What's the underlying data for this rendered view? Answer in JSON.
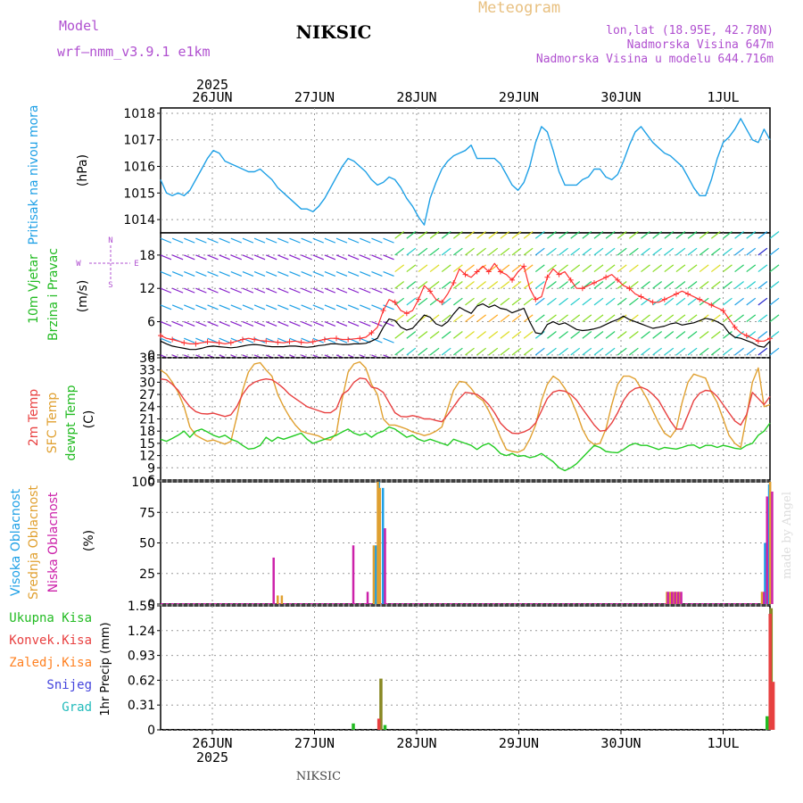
{
  "header": {
    "model_label": "Model",
    "model_name": "wrf–nmm_v3.9.1  e1km",
    "station": "NIKSIC",
    "product": "Meteogram",
    "coords": "lon,lat (18.95E, 42.78N)",
    "elevation": "Nadmorska Visina 647m",
    "model_elevation": "Nadmorska Visina u modelu 644.716m"
  },
  "footer": {
    "station": "NIKSIC",
    "credit": "made by Angel"
  },
  "colors": {
    "pressure": "#1ea0e6",
    "temp2m": "#e84040",
    "sfc": "#e0a030",
    "dewpt": "#22cc22",
    "wind_speed": "#000000",
    "gust": "#ff3030",
    "high_cloud": "#1ea0e6",
    "mid_cloud": "#e0a030",
    "low_cloud": "#cc22aa",
    "total_precip": "#22bb22",
    "conv_precip": "#e84040",
    "frozen_precip": "#ff8020",
    "snow": "#4444dd",
    "hail": "#22bbbb",
    "purple_label": "#b050d0"
  },
  "chart_data": [
    {
      "type": "line",
      "ylabel_left": "Pritisak na nivou mora",
      "units": "(hPa)",
      "x_labels": [
        "26JUN",
        "27JUN",
        "28JUN",
        "29JUN",
        "30JUN",
        "1JUL"
      ],
      "x_year": "2025",
      "y_ticks": [
        "1014",
        "1015",
        "1016",
        "1017",
        "1018"
      ],
      "ylim": [
        1013.5,
        1018.2
      ],
      "series": [
        {
          "values": [
            1015.5,
            1015.0,
            1014.9,
            1015.0,
            1014.9,
            1015.1,
            1015.5,
            1015.9,
            1016.3,
            1016.6,
            1016.5,
            1016.2,
            1016.1,
            1016.0,
            1015.9,
            1015.8,
            1015.8,
            1015.9,
            1015.7,
            1015.5,
            1015.2,
            1015.0,
            1014.8,
            1014.6,
            1014.4,
            1014.4,
            1014.3,
            1014.5,
            1014.8,
            1015.2,
            1015.6,
            1016.0,
            1016.3,
            1016.2,
            1016.0,
            1015.8,
            1015.5,
            1015.3,
            1015.4,
            1015.6,
            1015.5,
            1015.2,
            1014.8,
            1014.5,
            1014.1,
            1013.8,
            1014.8,
            1015.4,
            1015.9,
            1016.2,
            1016.4,
            1016.5,
            1016.6,
            1016.8,
            1016.3,
            1016.3,
            1016.3,
            1016.3,
            1016.1,
            1015.7,
            1015.3,
            1015.1,
            1015.4,
            1016.0,
            1016.9,
            1017.5,
            1017.3,
            1016.6,
            1015.8,
            1015.3,
            1015.3,
            1015.3,
            1015.5,
            1015.6,
            1015.9,
            1015.9,
            1015.6,
            1015.5,
            1015.7,
            1016.2,
            1016.8,
            1017.3,
            1017.5,
            1017.2,
            1016.9,
            1016.7,
            1016.5,
            1016.4,
            1016.2,
            1016.0,
            1015.6,
            1015.2,
            1014.9,
            1014.9,
            1015.5,
            1016.3,
            1016.9,
            1017.1,
            1017.4,
            1017.8,
            1017.4,
            1017.0,
            1016.9,
            1017.4,
            1017.0
          ]
        }
      ]
    },
    {
      "type": "line",
      "ylabel_left": [
        "10m Vjetar",
        "Brzina i Pravac"
      ],
      "units": "(m/s)",
      "compass": {
        "north": "N",
        "west": "W",
        "east": "E",
        "south": "S"
      },
      "y_ticks": [
        "0",
        "6",
        "12",
        "18"
      ],
      "ylim": [
        -0.5,
        22
      ],
      "series": [
        {
          "name": "speed",
          "values": [
            2.5,
            2.0,
            1.6,
            1.4,
            1.2,
            1.0,
            1.0,
            1.2,
            1.5,
            1.6,
            1.5,
            1.4,
            1.3,
            1.4,
            1.6,
            1.8,
            1.9,
            1.8,
            1.6,
            1.5,
            1.5,
            1.5,
            1.6,
            1.6,
            1.5,
            1.4,
            1.5,
            1.7,
            1.8,
            2.0,
            2.0,
            1.9,
            1.9,
            2.0,
            2.0,
            2.1,
            2.5,
            3.0,
            5.0,
            6.5,
            6.2,
            5.0,
            4.5,
            4.8,
            6.0,
            7.2,
            6.8,
            5.6,
            5.2,
            6.0,
            7.4,
            8.6,
            8.0,
            7.5,
            8.8,
            9.2,
            8.6,
            9.0,
            8.4,
            8.2,
            7.6,
            8.0,
            8.4,
            6.0,
            4.0,
            3.8,
            5.5,
            6.0,
            5.5,
            5.8,
            5.2,
            4.6,
            4.4,
            4.5,
            4.7,
            5.0,
            5.5,
            6.0,
            6.4,
            7.0,
            6.4,
            6.0,
            5.6,
            5.2,
            4.8,
            5.0,
            5.2,
            5.6,
            5.8,
            5.4,
            5.6,
            5.8,
            6.2,
            6.6,
            6.4,
            6.0,
            5.4,
            4.0,
            3.2,
            3.0,
            2.6,
            2.2,
            1.6,
            1.4,
            2.5
          ]
        },
        {
          "name": "gust",
          "values": [
            3.5,
            3.0,
            2.8,
            2.5,
            2.2,
            2.0,
            2.0,
            2.2,
            2.4,
            2.3,
            2.2,
            2.0,
            2.2,
            2.5,
            2.8,
            3.0,
            2.8,
            2.6,
            2.5,
            2.4,
            2.3,
            2.2,
            2.4,
            2.5,
            2.3,
            2.2,
            2.4,
            2.6,
            2.8,
            3.0,
            3.0,
            2.8,
            2.8,
            2.9,
            3.0,
            3.2,
            4.0,
            5.0,
            8.0,
            10.0,
            9.5,
            8.0,
            7.5,
            8.0,
            10.0,
            12.5,
            11.5,
            10.0,
            9.5,
            11.0,
            13.0,
            15.5,
            14.5,
            14.0,
            15.0,
            16.0,
            15.0,
            16.5,
            15.0,
            14.5,
            13.5,
            15.0,
            16.0,
            12.0,
            10.0,
            10.5,
            14.0,
            15.5,
            14.5,
            15.0,
            13.5,
            12.0,
            12.0,
            12.5,
            13.0,
            13.5,
            14.0,
            14.5,
            13.5,
            12.5,
            12.0,
            11.0,
            10.5,
            10.0,
            9.5,
            9.5,
            10.0,
            10.5,
            11.0,
            11.5,
            11.0,
            10.5,
            10.0,
            9.5,
            9.0,
            8.5,
            8.0,
            6.5,
            5.0,
            4.0,
            3.5,
            3.0,
            2.5,
            2.5,
            3.0
          ]
        }
      ]
    },
    {
      "type": "line",
      "ylabel_left": [
        "2m Temp",
        "SFC Temp",
        "dewpt Temp"
      ],
      "units": "(C)",
      "y_ticks": [
        "6",
        "9",
        "12",
        "15",
        "18",
        "21",
        "24",
        "27",
        "30",
        "33",
        "36"
      ],
      "ylim": [
        6,
        36
      ],
      "series": [
        {
          "name": "2m Temp",
          "values": [
            30.8,
            30.6,
            29.5,
            28.0,
            25.8,
            24.0,
            22.8,
            22.3,
            22.2,
            22.4,
            22.0,
            21.6,
            22.0,
            24.0,
            27.0,
            29.0,
            30.0,
            30.5,
            30.8,
            30.6,
            29.7,
            28.5,
            27.0,
            26.0,
            25.0,
            24.0,
            23.5,
            23.0,
            22.5,
            22.5,
            23.5,
            27.0,
            28.0,
            30.0,
            31.0,
            30.8,
            28.8,
            28.5,
            27.5,
            25.0,
            22.5,
            21.6,
            21.5,
            21.8,
            21.5,
            21.0,
            21.0,
            20.6,
            20.3,
            22.0,
            24.0,
            26.0,
            27.5,
            27.3,
            27.0,
            26.0,
            24.5,
            22.5,
            20.0,
            18.5,
            17.5,
            17.4,
            17.8,
            18.5,
            20.0,
            23.0,
            26.0,
            27.6,
            28.0,
            27.8,
            27.0,
            25.6,
            23.5,
            21.5,
            19.5,
            18.0,
            18.2,
            20.0,
            22.5,
            25.5,
            27.5,
            28.5,
            28.8,
            28.2,
            27.0,
            25.5,
            23.0,
            20.5,
            18.5,
            18.5,
            22.0,
            25.5,
            27.3,
            28.0,
            27.8,
            26.5,
            24.5,
            22.5,
            20.5,
            19.5,
            22.0,
            27.5,
            26.0,
            24.5,
            26.5
          ]
        },
        {
          "name": "SFC Temp",
          "values": [
            33.0,
            32.0,
            30.0,
            27.5,
            24.0,
            19.0,
            17.0,
            16.2,
            15.5,
            15.8,
            15.3,
            14.8,
            15.5,
            21.5,
            28.0,
            32.5,
            34.5,
            34.8,
            33.0,
            31.5,
            27.0,
            24.0,
            21.5,
            19.5,
            18.0,
            17.5,
            17.2,
            16.8,
            16.0,
            15.8,
            17.5,
            26.0,
            32.5,
            34.5,
            35.0,
            33.5,
            29.5,
            27.0,
            21.0,
            19.5,
            19.5,
            19.0,
            18.5,
            17.8,
            17.4,
            16.9,
            17.3,
            18.0,
            19.0,
            23.5,
            28.0,
            30.2,
            30.0,
            28.5,
            26.5,
            25.5,
            23.0,
            20.0,
            16.5,
            13.5,
            13.0,
            12.8,
            13.5,
            16.0,
            19.5,
            25.5,
            29.5,
            31.5,
            30.5,
            28.5,
            26.0,
            22.5,
            18.5,
            15.8,
            14.7,
            15.0,
            18.5,
            24.5,
            29.5,
            31.5,
            31.5,
            30.8,
            28.5,
            26.0,
            23.0,
            20.0,
            17.5,
            16.5,
            18.5,
            25.0,
            30.0,
            32.0,
            31.5,
            31.0,
            27.5,
            25.0,
            21.0,
            17.0,
            15.0,
            14.0,
            21.5,
            30.0,
            33.5,
            24.0,
            24.5
          ]
        },
        {
          "name": "dewpt Temp",
          "values": [
            16.0,
            15.5,
            16.2,
            17.0,
            18.0,
            16.5,
            18.0,
            18.5,
            17.8,
            17.0,
            16.5,
            17.0,
            16.0,
            15.5,
            14.5,
            13.6,
            13.8,
            14.5,
            16.5,
            15.5,
            16.5,
            16.0,
            16.5,
            17.0,
            17.5,
            16.0,
            15.0,
            15.5,
            16.0,
            16.5,
            17.0,
            17.8,
            18.5,
            17.5,
            17.0,
            17.5,
            16.5,
            17.5,
            18.0,
            19.0,
            18.5,
            17.5,
            16.5,
            17.0,
            16.0,
            15.5,
            16.0,
            15.5,
            15.0,
            14.5,
            16.0,
            15.5,
            15.0,
            14.5,
            13.5,
            14.5,
            15.0,
            14.0,
            12.5,
            12.0,
            12.5,
            11.8,
            12.0,
            11.5,
            11.8,
            12.5,
            11.5,
            10.5,
            9.0,
            8.3,
            9.0,
            10.0,
            11.5,
            13.0,
            14.5,
            14.0,
            13.0,
            12.8,
            12.7,
            13.5,
            14.5,
            15.0,
            14.5,
            14.5,
            14.0,
            13.5,
            14.0,
            13.8,
            13.6,
            14.0,
            14.5,
            14.6,
            13.8,
            14.5,
            14.5,
            14.0,
            14.5,
            14.2,
            13.8,
            13.6,
            14.5,
            15.0,
            17.0,
            18.0,
            20.0
          ]
        }
      ]
    },
    {
      "type": "bar",
      "ylabel_left": [
        "Visoka Oblacnost",
        "Srednja Oblacnost",
        "Niska Oblacnost"
      ],
      "units": "(%)",
      "y_ticks": [
        "0",
        "25",
        "50",
        "75",
        "100"
      ],
      "ylim": [
        0,
        100
      ],
      "series": [
        {
          "name": "Visoka Oblacnost",
          "bars": [
            {
              "day": 1.6,
              "v": 48
            },
            {
              "day": 1.63,
              "v": 100
            },
            {
              "day": 1.67,
              "v": 95
            },
            {
              "day": 5.41,
              "v": 50
            },
            {
              "day": 5.45,
              "v": 98
            }
          ]
        },
        {
          "name": "Srednja Oblacnost",
          "bars": [
            {
              "day": 0.64,
              "v": 7
            },
            {
              "day": 0.68,
              "v": 7
            },
            {
              "day": 1.58,
              "v": 48
            },
            {
              "day": 1.62,
              "v": 100
            },
            {
              "day": 1.64,
              "v": 95
            },
            {
              "day": 4.45,
              "v": 10
            },
            {
              "day": 4.48,
              "v": 10
            },
            {
              "day": 4.51,
              "v": 10
            },
            {
              "day": 4.54,
              "v": 10
            },
            {
              "day": 4.57,
              "v": 10
            },
            {
              "day": 5.38,
              "v": 10
            },
            {
              "day": 5.46,
              "v": 100
            }
          ]
        },
        {
          "name": "Niska Oblacnost",
          "bars": [
            {
              "day": 0.6,
              "v": 38
            },
            {
              "day": 1.38,
              "v": 48
            },
            {
              "day": 1.52,
              "v": 10
            },
            {
              "day": 1.69,
              "v": 62
            },
            {
              "day": 4.46,
              "v": 10
            },
            {
              "day": 4.5,
              "v": 10
            },
            {
              "day": 4.53,
              "v": 10
            },
            {
              "day": 4.56,
              "v": 10
            },
            {
              "day": 4.59,
              "v": 10
            },
            {
              "day": 5.4,
              "v": 10
            },
            {
              "day": 5.43,
              "v": 88
            },
            {
              "day": 5.48,
              "v": 92
            }
          ]
        }
      ]
    },
    {
      "type": "bar",
      "ylabel_left": [
        "Ukupna Kisa",
        "Konvek.Kisa",
        "Zaledj.Kisa",
        "Snijeg",
        "Grad"
      ],
      "units": "1hr Precip (mm)",
      "y_ticks": [
        "0",
        "0.31",
        "0.62",
        "0.93",
        "1.24",
        "1.55"
      ],
      "ylim": [
        0,
        1.55
      ],
      "series": [
        {
          "name": "Ukupna Kisa",
          "bars": [
            {
              "day": 1.38,
              "v": 0.08
            },
            {
              "day": 1.65,
              "v": 0.64
            },
            {
              "day": 1.69,
              "v": 0.06
            },
            {
              "day": 5.43,
              "v": 0.17
            },
            {
              "day": 5.47,
              "v": 1.52
            }
          ]
        },
        {
          "name": "Konvek.Kisa",
          "bars": [
            {
              "day": 1.63,
              "v": 0.14
            },
            {
              "day": 5.46,
              "v": 1.45
            },
            {
              "day": 5.49,
              "v": 0.6
            }
          ]
        },
        {
          "name": "Zaledj.Kisa",
          "bars": []
        },
        {
          "name": "Snijeg",
          "bars": []
        },
        {
          "name": "Grad",
          "bars": []
        }
      ]
    }
  ]
}
